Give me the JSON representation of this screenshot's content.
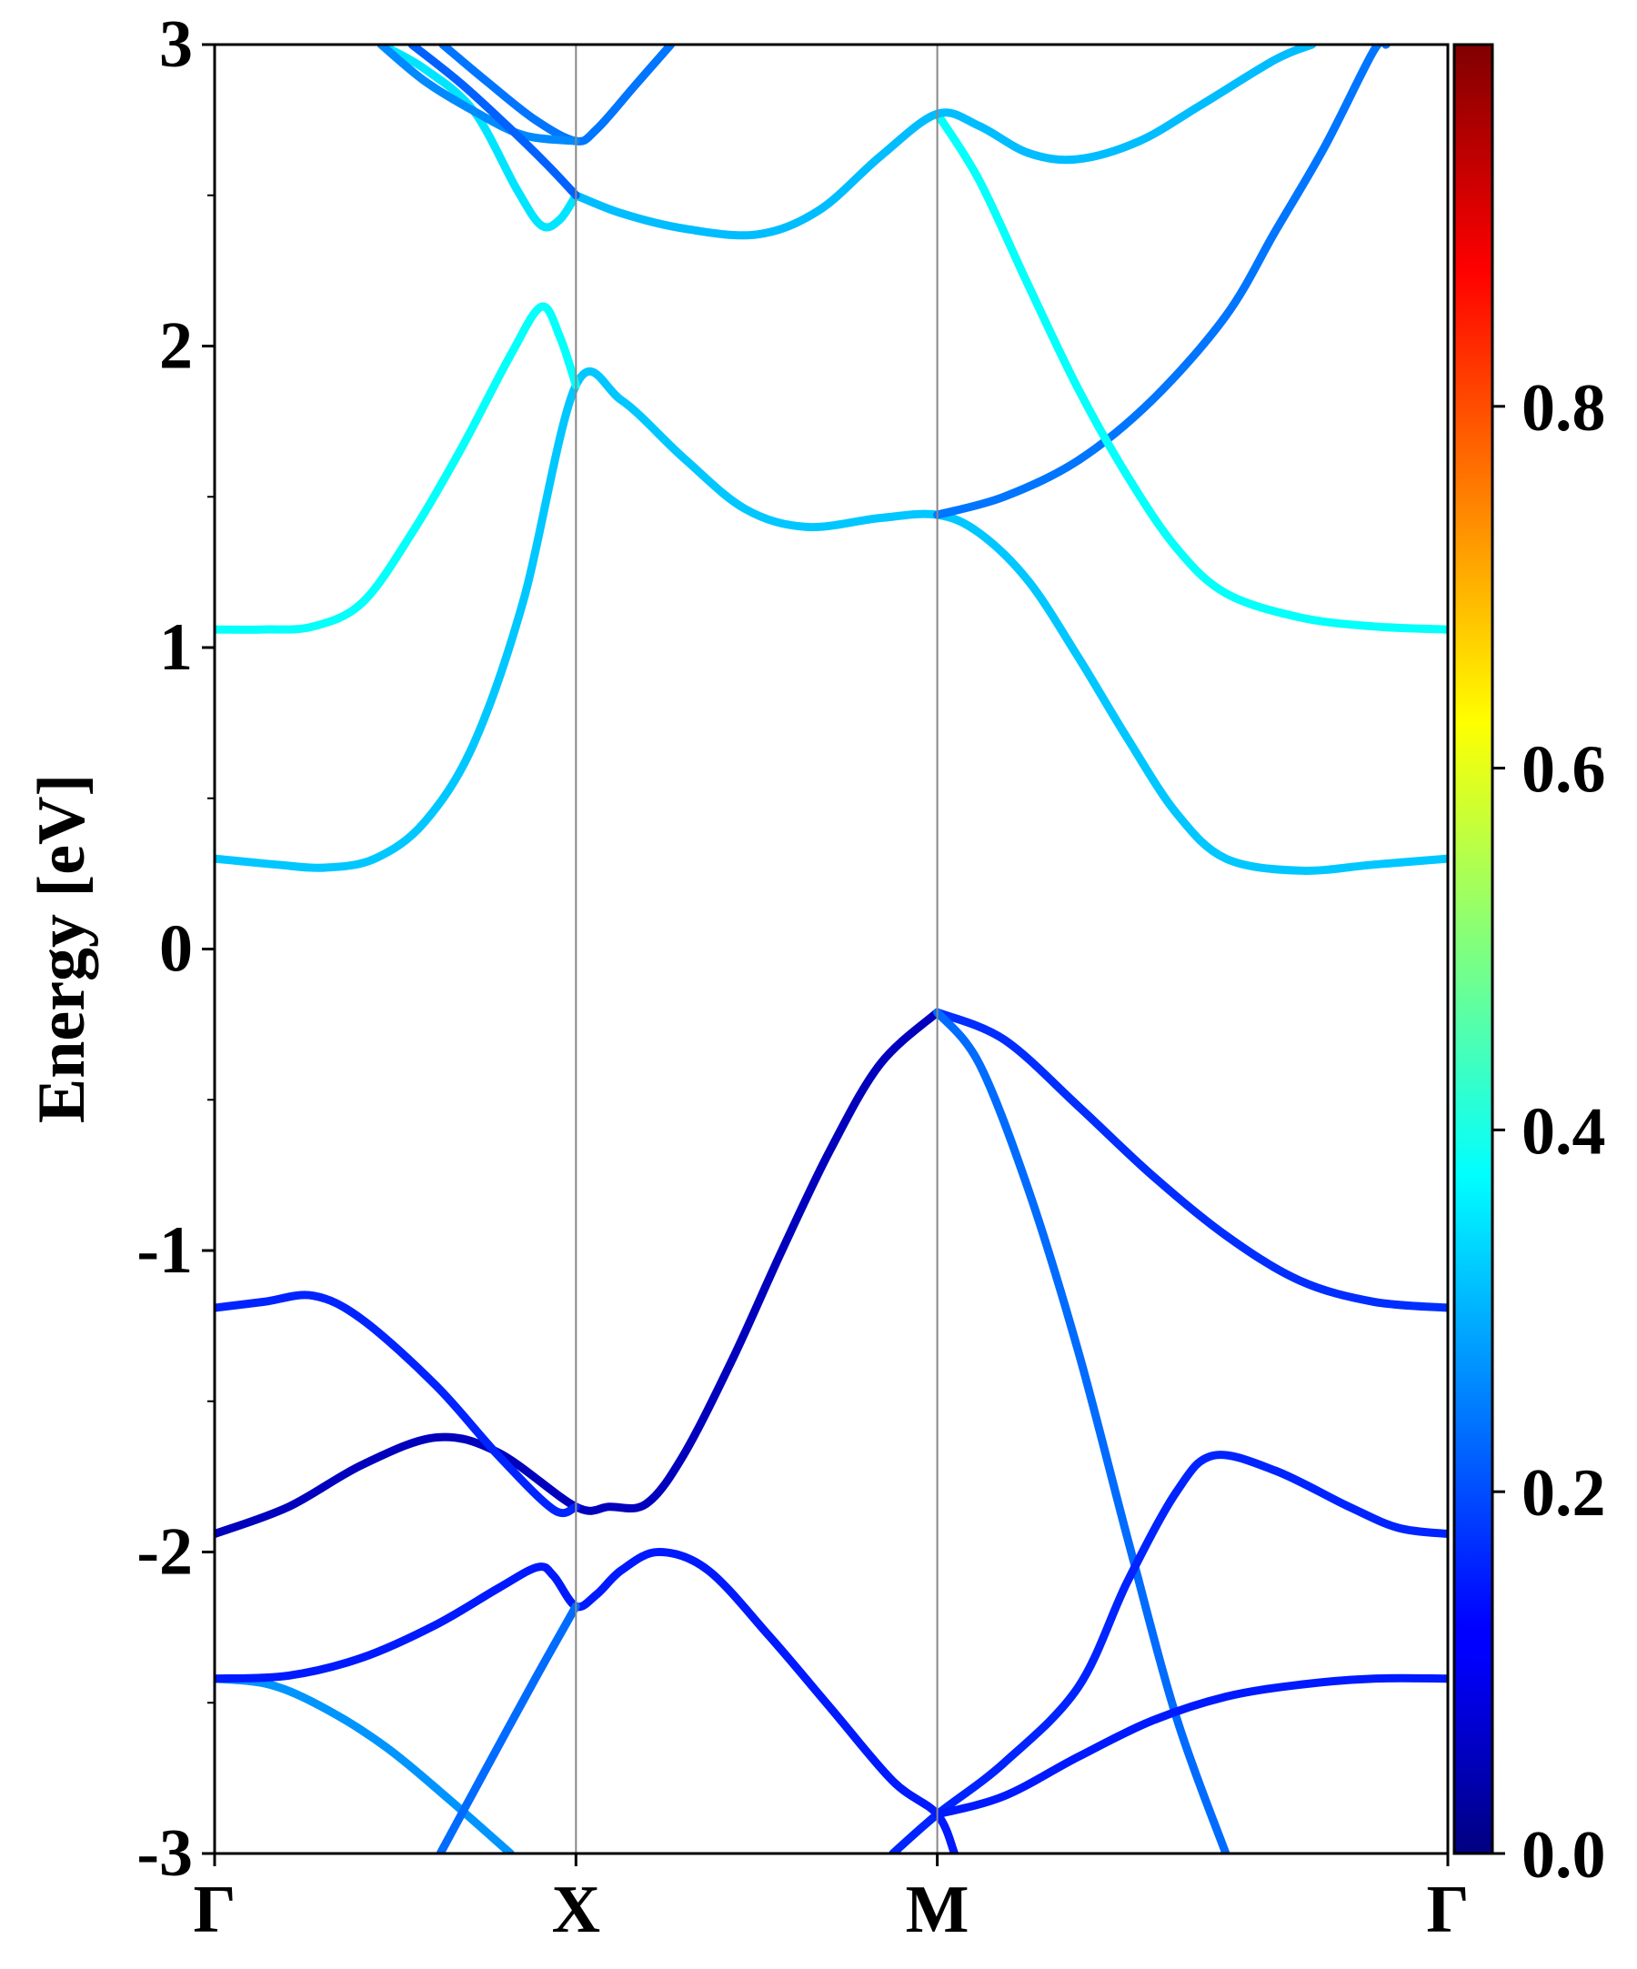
{
  "chart_data": {
    "type": "line",
    "title": "",
    "xlabel": "",
    "ylabel": "Energy [eV]",
    "ylim": [
      -3,
      3
    ],
    "xlim": [
      0,
      1
    ],
    "grid": false,
    "legend": "none",
    "high_symmetry_points": [
      {
        "label": "Γ",
        "x": 0.0
      },
      {
        "label": "X",
        "x": 0.293
      },
      {
        "label": "M",
        "x": 0.586
      },
      {
        "label": "Γ",
        "x": 1.0
      }
    ],
    "y_ticks": [
      -3,
      -2,
      -1,
      0,
      1,
      2,
      3
    ],
    "y_tick_labels": [
      "-3",
      "-2",
      "-1",
      "0",
      "1",
      "2",
      "3"
    ],
    "colorbar": {
      "colormap": "jet",
      "range": [
        0,
        1
      ],
      "ticks": [
        0.0,
        0.2,
        0.4,
        0.6,
        0.8
      ],
      "tick_labels": [
        "0.0",
        "0.2",
        "0.4",
        "0.6",
        "0.8"
      ]
    },
    "series": [
      {
        "weight": 0.27,
        "points": [
          [
            0.0,
            -2.42
          ],
          [
            0.045,
            -2.44
          ],
          [
            0.09,
            -2.52
          ],
          [
            0.14,
            -2.65
          ],
          [
            0.19,
            -2.82
          ],
          [
            0.24,
            -3.0
          ]
        ]
      },
      {
        "weight": 0.15,
        "points": [
          [
            0.0,
            -2.42
          ],
          [
            0.06,
            -2.41
          ],
          [
            0.12,
            -2.35
          ],
          [
            0.18,
            -2.24
          ],
          [
            0.23,
            -2.12
          ],
          [
            0.262,
            -2.05
          ],
          [
            0.275,
            -2.08
          ],
          [
            0.293,
            -2.18
          ],
          [
            0.31,
            -2.14
          ],
          [
            0.33,
            -2.06
          ],
          [
            0.36,
            -2.0
          ],
          [
            0.4,
            -2.06
          ],
          [
            0.45,
            -2.28
          ],
          [
            0.5,
            -2.52
          ],
          [
            0.55,
            -2.76
          ],
          [
            0.586,
            -2.87
          ],
          [
            0.6,
            -3.0
          ]
        ]
      },
      {
        "weight": 0.23,
        "points": [
          [
            0.183,
            -3.0
          ],
          [
            0.22,
            -2.72
          ],
          [
            0.26,
            -2.42
          ],
          [
            0.293,
            -2.18
          ]
        ]
      },
      {
        "weight": 0.06,
        "points": [
          [
            0.0,
            -1.94
          ],
          [
            0.06,
            -1.85
          ],
          [
            0.12,
            -1.71
          ],
          [
            0.18,
            -1.62
          ],
          [
            0.23,
            -1.67
          ],
          [
            0.293,
            -1.85
          ],
          [
            0.32,
            -1.85
          ],
          [
            0.35,
            -1.84
          ],
          [
            0.38,
            -1.68
          ],
          [
            0.42,
            -1.36
          ],
          [
            0.46,
            -1.0
          ],
          [
            0.5,
            -0.66
          ],
          [
            0.54,
            -0.38
          ],
          [
            0.586,
            -0.21
          ]
        ]
      },
      {
        "weight": 0.16,
        "points": [
          [
            0.0,
            -1.19
          ],
          [
            0.04,
            -1.17
          ],
          [
            0.08,
            -1.15
          ],
          [
            0.12,
            -1.23
          ],
          [
            0.18,
            -1.45
          ],
          [
            0.23,
            -1.68
          ],
          [
            0.275,
            -1.86
          ],
          [
            0.293,
            -1.85
          ]
        ]
      },
      {
        "weight": 0.17,
        "points": [
          [
            0.586,
            -0.21
          ],
          [
            0.64,
            -0.3
          ],
          [
            0.7,
            -0.52
          ],
          [
            0.76,
            -0.75
          ],
          [
            0.82,
            -0.95
          ],
          [
            0.88,
            -1.1
          ],
          [
            0.94,
            -1.17
          ],
          [
            1.0,
            -1.19
          ]
        ]
      },
      {
        "weight": 0.23,
        "points": [
          [
            0.586,
            -0.21
          ],
          [
            0.62,
            -0.38
          ],
          [
            0.66,
            -0.8
          ],
          [
            0.7,
            -1.33
          ],
          [
            0.74,
            -1.95
          ],
          [
            0.78,
            -2.55
          ],
          [
            0.82,
            -3.0
          ]
        ]
      },
      {
        "weight": 0.16,
        "points": [
          [
            0.55,
            -3.0
          ],
          [
            0.586,
            -2.87
          ],
          [
            0.64,
            -2.7
          ],
          [
            0.7,
            -2.45
          ],
          [
            0.74,
            -2.1
          ],
          [
            0.78,
            -1.8
          ],
          [
            0.81,
            -1.68
          ],
          [
            0.86,
            -1.73
          ],
          [
            0.92,
            -1.85
          ],
          [
            0.96,
            -1.92
          ],
          [
            1.0,
            -1.94
          ]
        ]
      },
      {
        "weight": 0.15,
        "points": [
          [
            0.586,
            -2.87
          ],
          [
            0.64,
            -2.81
          ],
          [
            0.7,
            -2.68
          ],
          [
            0.76,
            -2.56
          ],
          [
            0.82,
            -2.48
          ],
          [
            0.88,
            -2.44
          ],
          [
            0.94,
            -2.42
          ],
          [
            1.0,
            -2.42
          ]
        ]
      },
      {
        "weight": 0.32,
        "points": [
          [
            0.0,
            0.3
          ],
          [
            0.05,
            0.28
          ],
          [
            0.09,
            0.27
          ],
          [
            0.13,
            0.3
          ],
          [
            0.17,
            0.42
          ],
          [
            0.21,
            0.68
          ],
          [
            0.25,
            1.15
          ],
          [
            0.293,
            1.87
          ],
          [
            0.33,
            1.82
          ],
          [
            0.38,
            1.63
          ],
          [
            0.43,
            1.46
          ],
          [
            0.48,
            1.4
          ],
          [
            0.54,
            1.43
          ],
          [
            0.586,
            1.44
          ],
          [
            0.62,
            1.38
          ],
          [
            0.66,
            1.22
          ],
          [
            0.7,
            0.97
          ],
          [
            0.74,
            0.7
          ],
          [
            0.78,
            0.45
          ],
          [
            0.82,
            0.3
          ],
          [
            0.88,
            0.26
          ],
          [
            0.94,
            0.28
          ],
          [
            1.0,
            0.3
          ]
        ]
      },
      {
        "weight": 0.38,
        "points": [
          [
            0.0,
            1.06
          ],
          [
            0.04,
            1.06
          ],
          [
            0.08,
            1.07
          ],
          [
            0.12,
            1.15
          ],
          [
            0.16,
            1.38
          ],
          [
            0.2,
            1.66
          ],
          [
            0.24,
            1.97
          ],
          [
            0.265,
            2.13
          ],
          [
            0.28,
            2.03
          ],
          [
            0.293,
            1.87
          ]
        ]
      },
      {
        "weight": 0.24,
        "points": [
          [
            0.586,
            1.44
          ],
          [
            0.64,
            1.5
          ],
          [
            0.7,
            1.62
          ],
          [
            0.76,
            1.82
          ],
          [
            0.82,
            2.1
          ],
          [
            0.86,
            2.38
          ],
          [
            0.9,
            2.66
          ],
          [
            0.94,
            2.98
          ],
          [
            0.95,
            3.0
          ]
        ]
      },
      {
        "weight": 0.38,
        "points": [
          [
            0.586,
            2.77
          ],
          [
            0.62,
            2.55
          ],
          [
            0.66,
            2.2
          ],
          [
            0.7,
            1.86
          ],
          [
            0.74,
            1.57
          ],
          [
            0.78,
            1.33
          ],
          [
            0.82,
            1.18
          ],
          [
            0.88,
            1.1
          ],
          [
            0.94,
            1.07
          ],
          [
            1.0,
            1.06
          ]
        ]
      },
      {
        "weight": 0.31,
        "points": [
          [
            0.293,
            2.5
          ],
          [
            0.33,
            2.44
          ],
          [
            0.38,
            2.39
          ],
          [
            0.44,
            2.37
          ],
          [
            0.49,
            2.45
          ],
          [
            0.54,
            2.63
          ],
          [
            0.586,
            2.77
          ],
          [
            0.62,
            2.73
          ],
          [
            0.66,
            2.64
          ],
          [
            0.7,
            2.62
          ],
          [
            0.75,
            2.68
          ],
          [
            0.8,
            2.8
          ],
          [
            0.86,
            2.95
          ],
          [
            0.89,
            3.0
          ]
        ]
      },
      {
        "weight": 0.35,
        "points": [
          [
            0.135,
            3.0
          ],
          [
            0.17,
            2.92
          ],
          [
            0.21,
            2.78
          ],
          [
            0.245,
            2.52
          ],
          [
            0.265,
            2.4
          ],
          [
            0.28,
            2.42
          ],
          [
            0.293,
            2.5
          ]
        ]
      },
      {
        "weight": 0.24,
        "points": [
          [
            0.185,
            3.0
          ],
          [
            0.22,
            2.88
          ],
          [
            0.26,
            2.75
          ],
          [
            0.293,
            2.68
          ],
          [
            0.31,
            2.72
          ],
          [
            0.34,
            2.86
          ],
          [
            0.37,
            3.0
          ]
        ]
      },
      {
        "weight": 0.26,
        "points": [
          [
            0.135,
            3.0
          ],
          [
            0.17,
            2.88
          ],
          [
            0.21,
            2.78
          ],
          [
            0.25,
            2.7
          ],
          [
            0.293,
            2.68
          ]
        ]
      },
      {
        "weight": 0.22,
        "points": [
          [
            0.16,
            3.0
          ],
          [
            0.2,
            2.87
          ],
          [
            0.24,
            2.72
          ],
          [
            0.27,
            2.6
          ],
          [
            0.293,
            2.5
          ]
        ]
      }
    ]
  }
}
